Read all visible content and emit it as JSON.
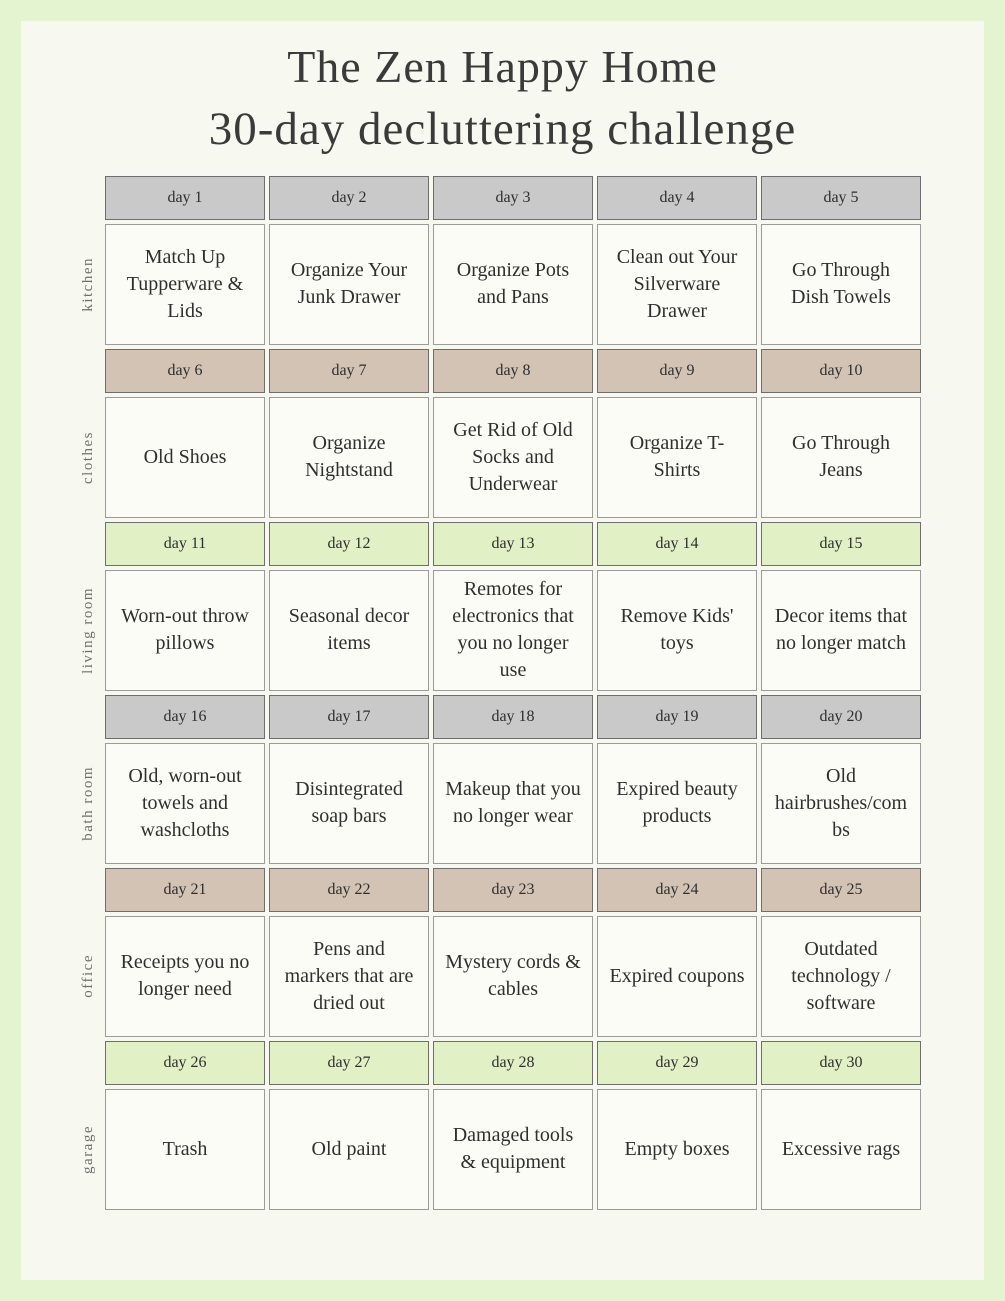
{
  "title": {
    "line1": "The Zen Happy Home",
    "line2": "30-day decluttering challenge"
  },
  "colors": {
    "page_background": "#e4f3d0",
    "inner_background": "#f7f8ef",
    "header_gray": "#c9c9c9",
    "header_tan": "#d2c3b5",
    "header_green": "#e2f0c5",
    "cell_background": "#fcfcf6",
    "header_border": "#6e6e6e",
    "cell_border": "#9b9b9b",
    "text": "#333333"
  },
  "groups": [
    {
      "label": "kitchen",
      "scheme": "gray",
      "days": [
        "day 1",
        "day 2",
        "day 3",
        "day 4",
        "day 5"
      ],
      "tasks": [
        "Match Up Tupperware & Lids",
        "Organize Your Junk Drawer",
        "Organize Pots and Pans",
        "Clean out Your Silverware Drawer",
        "Go Through Dish Towels"
      ]
    },
    {
      "label": "clothes",
      "scheme": "tan",
      "days": [
        "day 6",
        "day 7",
        "day 8",
        "day 9",
        "day 10"
      ],
      "tasks": [
        "Old  Shoes",
        "Organize Nightstand",
        "Get Rid of Old Socks and Underwear",
        "Organize T-Shirts",
        "Go Through Jeans"
      ]
    },
    {
      "label": "living room",
      "scheme": "green",
      "days": [
        "day 11",
        "day 12",
        "day 13",
        "day 14",
        "day 15"
      ],
      "tasks": [
        "Worn-out throw pillows",
        "Seasonal decor items",
        "Remotes for electronics that you no longer use",
        "Remove Kids' toys",
        "Decor items that no longer match"
      ]
    },
    {
      "label": "bath room",
      "scheme": "gray",
      "days": [
        "day 16",
        "day 17",
        "day 18",
        "day 19",
        "day 20"
      ],
      "tasks": [
        "Old, worn-out towels and washcloths",
        "Disintegrated soap bars",
        "Makeup that you no longer wear",
        "Expired beauty products",
        "Old hairbrushes/combs"
      ]
    },
    {
      "label": "office",
      "scheme": "tan",
      "days": [
        "day 21",
        "day 22",
        "day 23",
        "day 24",
        "day 25"
      ],
      "tasks": [
        "Receipts you no longer need",
        "Pens and markers that are dried out",
        "Mystery cords & cables",
        "Expired coupons",
        "Outdated technology / software"
      ]
    },
    {
      "label": "garage",
      "scheme": "green",
      "days": [
        "day 26",
        "day 27",
        "day 28",
        "day 29",
        "day 30"
      ],
      "tasks": [
        "Trash",
        "Old paint",
        "Damaged tools & equipment",
        "Empty boxes",
        "Excessive rags"
      ]
    }
  ]
}
